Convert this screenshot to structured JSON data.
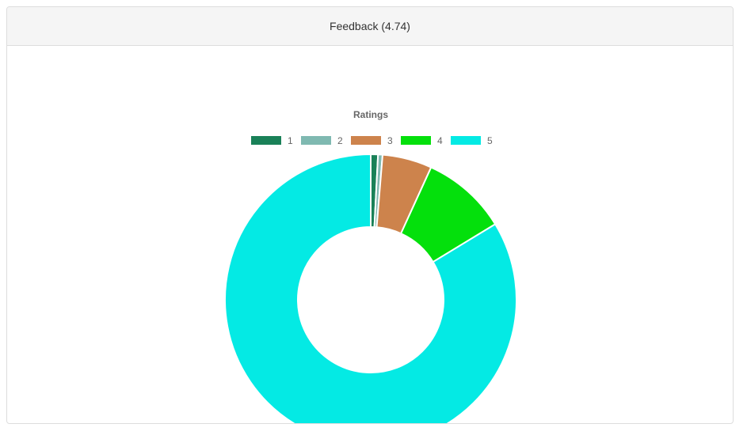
{
  "panel": {
    "title": "Feedback (4.74)"
  },
  "chart_data": {
    "type": "pie",
    "variant": "doughnut",
    "title": "Ratings",
    "legend_position": "top",
    "categories": [
      "1",
      "2",
      "3",
      "4",
      "5"
    ],
    "values": [
      0.8,
      0.5,
      5.5,
      9.5,
      83.7
    ],
    "colors": [
      "#1a8158",
      "#7fb9b1",
      "#cd834c",
      "#04e00c",
      "#04eae4"
    ]
  }
}
